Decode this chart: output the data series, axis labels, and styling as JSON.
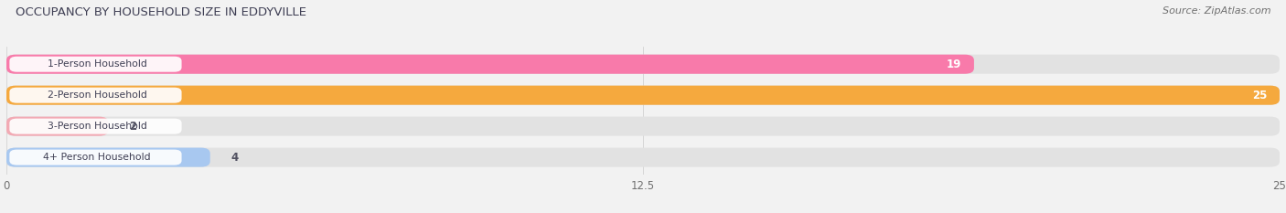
{
  "title": "OCCUPANCY BY HOUSEHOLD SIZE IN EDDYVILLE",
  "source": "Source: ZipAtlas.com",
  "categories": [
    "1-Person Household",
    "2-Person Household",
    "3-Person Household",
    "4+ Person Household"
  ],
  "values": [
    19,
    25,
    2,
    4
  ],
  "bar_colors": [
    "#f87aaa",
    "#f5a93e",
    "#f2aab4",
    "#a8c8f0"
  ],
  "xlim": [
    0,
    25
  ],
  "xticks": [
    0,
    12.5,
    25
  ],
  "background_color": "#f2f2f2",
  "bar_bg_color": "#e2e2e2",
  "title_color": "#404055",
  "source_color": "#707070",
  "label_text_color": "#404055",
  "value_color_inside": "#ffffff",
  "value_color_outside": "#505060"
}
